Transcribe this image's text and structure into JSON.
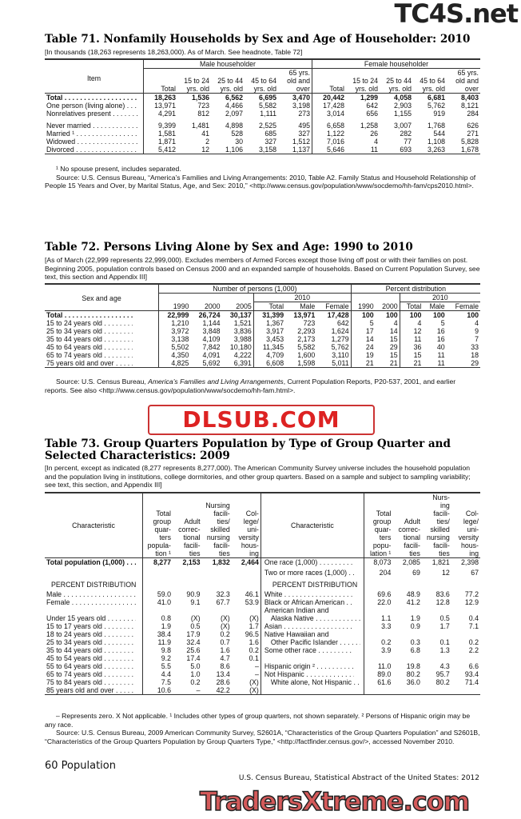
{
  "watermarks": {
    "top": "TC4S.net",
    "middle": "DLSUB.COM",
    "bottom": "TradersXtreme.com"
  },
  "t71": {
    "title": "Table 71. Nonfamily Households by Sex and Age of Householder: 2010",
    "headnote": "[In thousands (18,263 represents 18,263,000). As of March. See headnote, Table 72]",
    "item_header": "Item",
    "groups": [
      "Male householder",
      "Female householder"
    ],
    "cols": [
      "Total",
      "15 to 24 yrs. old",
      "25 to 44 yrs. old",
      "45 to 64 yrs. old",
      "65 yrs. old and over"
    ],
    "rows": [
      {
        "label": "Total",
        "bold": true,
        "values": [
          "18,263",
          "1,536",
          "6,562",
          "6,695",
          "3,470",
          "20,442",
          "1,299",
          "4,058",
          "6,681",
          "8,403"
        ]
      },
      {
        "label": "One person (living alone)",
        "values": [
          "13,971",
          "723",
          "4,466",
          "5,582",
          "3,198",
          "17,428",
          "642",
          "2,903",
          "5,762",
          "8,121"
        ]
      },
      {
        "label": "Nonrelatives present",
        "values": [
          "4,291",
          "812",
          "2,097",
          "1,111",
          "273",
          "3,014",
          "656",
          "1,155",
          "919",
          "284"
        ]
      },
      {
        "gap": true
      },
      {
        "label": "Never married",
        "values": [
          "9,399",
          "1,481",
          "4,898",
          "2,525",
          "495",
          "6,658",
          "1,258",
          "3,007",
          "1,768",
          "626"
        ]
      },
      {
        "label": "Married ¹",
        "values": [
          "1,581",
          "41",
          "528",
          "685",
          "327",
          "1,122",
          "26",
          "282",
          "544",
          "271"
        ]
      },
      {
        "label": "Widowed",
        "values": [
          "1,871",
          "2",
          "30",
          "327",
          "1,512",
          "7,016",
          "4",
          "77",
          "1,108",
          "5,828"
        ]
      },
      {
        "label": "Divorced",
        "values": [
          "5,412",
          "12",
          "1,106",
          "3,158",
          "1,137",
          "5,646",
          "11",
          "693",
          "3,263",
          "1,678"
        ]
      }
    ],
    "footnote": "¹ No spouse present, includes separated.",
    "source": "Source: U.S. Census Bureau, “America’s Families and Living Arrangements: 2010, Table A2. Family Status and Household Relationship of People 15 Years and Over, by Marital Status, Age, and Sex: 2010,” <http://www.census.gov/population/www/socdemo/hh-fam/cps2010.html>."
  },
  "t72": {
    "title": "Table 72. Persons Living Alone by Sex and Age: 1990 to 2010",
    "headnote": "[As of March (22,999 represents 22,999,000). Excludes members of Armed Forces except those living off post or with their families on post. Beginning 2005, population controls based on Census 2000 and an expanded sample of households. Based on Current Population Survey, see text, this section and Appendix III]",
    "stub_header": "Sex and age",
    "groups": [
      "Number of persons (1,000)",
      "Percent distribution"
    ],
    "sub_year": "2010",
    "years_num": [
      "1990",
      "2000",
      "2005"
    ],
    "years_pct": [
      "1990",
      "2000"
    ],
    "sub_cols": [
      "Total",
      "Male",
      "Female"
    ],
    "rows": [
      {
        "label": "Total",
        "bold": true,
        "values": [
          "22,999",
          "26,724",
          "30,137",
          "31,399",
          "13,971",
          "17,428",
          "100",
          "100",
          "100",
          "100",
          "100"
        ]
      },
      {
        "label": "15 to 24 years old",
        "values": [
          "1,210",
          "1,144",
          "1,521",
          "1,367",
          "723",
          "642",
          "5",
          "4",
          "4",
          "5",
          "4"
        ]
      },
      {
        "label": "25 to 34 years old",
        "values": [
          "3,972",
          "3,848",
          "3,836",
          "3,917",
          "2,293",
          "1,624",
          "17",
          "14",
          "12",
          "16",
          "9"
        ]
      },
      {
        "label": "35 to 44 years old",
        "values": [
          "3,138",
          "4,109",
          "3,988",
          "3,453",
          "2,173",
          "1,279",
          "14",
          "15",
          "11",
          "16",
          "7"
        ]
      },
      {
        "label": "45 to 64 years old",
        "values": [
          "5,502",
          "7,842",
          "10,180",
          "11,345",
          "5,582",
          "5,762",
          "24",
          "29",
          "36",
          "40",
          "33"
        ]
      },
      {
        "label": "65 to 74 years old",
        "values": [
          "4,350",
          "4,091",
          "4,222",
          "4,709",
          "1,600",
          "3,110",
          "19",
          "15",
          "15",
          "11",
          "18"
        ]
      },
      {
        "label": "75 years old and over",
        "values": [
          "4,825",
          "5,692",
          "6,391",
          "6,608",
          "1,598",
          "5,011",
          "21",
          "21",
          "21",
          "11",
          "29"
        ]
      }
    ],
    "source_a": "Source: U.S. Census Bureau, ",
    "source_i": "America’s Families and Living Arrangements",
    "source_b": ", Current Population Reports, P20-537, 2001, and earlier reports.  See also <http://www.census.gov/population/www/socdemo/hh-fam.html>."
  },
  "t73": {
    "title1": "Table 73. Group Quarters Population by Type of Group Quarter and",
    "title2": "Selected Characteristics: 2009",
    "headnote": "[In percent, except as indicated (8,277 represents 8,277,000). The American Community Survey universe includes the household population and the population living in institutions, college dormitories, and other group quarters. Based on a sample and subject to sampling variability; see text, this section, and Appendix III]",
    "stub_header": "Characteristic",
    "cols_left": [
      "Total group quar- ters popula- tion ¹",
      "Adult correc- tional facili- ties",
      "Nursing facili- ties/ skilled nursing facili- ties",
      "Col- lege/ uni- versity hous- ing"
    ],
    "cols_right": [
      "Total group quar- ters popu- lation ¹",
      "Adult correc- tional facili- ties",
      "Nurs- ing facili- ties/ skilled nursing facili- ties",
      "Col- lege/ uni- versity hous- ing"
    ],
    "rows": [
      {
        "l": "Total population (1,000)",
        "lb": true,
        "lv": [
          "8,277",
          "2,153",
          "1,832",
          "2,464"
        ],
        "r": "One race (1,000)",
        "rv": [
          "8,073",
          "2,085",
          "1,821",
          "2,398"
        ]
      },
      {
        "l": "",
        "lv": [],
        "r": "Two or more races (1,000)",
        "rv": [
          "204",
          "69",
          "12",
          "67"
        ]
      },
      {
        "l": "PERCENT DISTRIBUTION",
        "lh": true,
        "lv": [],
        "r": "PERCENT DISTRIBUTION",
        "rh": true,
        "rv": []
      },
      {
        "l": "Male",
        "lv": [
          "59.0",
          "90.9",
          "32.3",
          "46.1"
        ],
        "r": "White",
        "rv": [
          "69.6",
          "48.9",
          "83.6",
          "77.2"
        ]
      },
      {
        "l": "Female",
        "lv": [
          "41.0",
          "9.1",
          "67.7",
          "53.9"
        ],
        "r": "Black or African American",
        "rv": [
          "22.0",
          "41.2",
          "12.8",
          "12.9"
        ]
      },
      {
        "l": "",
        "lv": [],
        "r": "American Indian and",
        "rnod": true,
        "rv": []
      },
      {
        "l": "Under 15 years old",
        "lv": [
          "0.8",
          "(X)",
          "(X)",
          "(X)"
        ],
        "r": "Alaska Native",
        "rind": true,
        "rv": [
          "1.1",
          "1.9",
          "0.5",
          "0.4"
        ]
      },
      {
        "l": "15 to 17 years old",
        "lv": [
          "1.9",
          "0.5",
          "(X)",
          "1.7"
        ],
        "r": "Asian",
        "rv": [
          "3.3",
          "0.9",
          "1.7",
          "7.1"
        ]
      },
      {
        "l": "18 to 24 years old",
        "lv": [
          "38.4",
          "17.9",
          "0.2",
          "96.5"
        ],
        "r": "Native Hawaiian and",
        "rnod": true,
        "rv": []
      },
      {
        "l": "25 to 34 years old",
        "lv": [
          "11.9",
          "32.4",
          "0.7",
          "1.6"
        ],
        "r": "Other Pacific Islander",
        "rind": true,
        "rv": [
          "0.2",
          "0.3",
          "0.1",
          "0.2"
        ]
      },
      {
        "l": "35 to 44 years old",
        "lv": [
          "9.8",
          "25.6",
          "1.6",
          "0.2"
        ],
        "r": "Some other race",
        "rv": [
          "3.9",
          "6.8",
          "1.3",
          "2.2"
        ]
      },
      {
        "l": "45 to 54 years old",
        "lv": [
          "9.2",
          "17.4",
          "4.7",
          "0.1"
        ],
        "r": "",
        "rv": []
      },
      {
        "l": "55 to 64 years old",
        "lv": [
          "5.5",
          "5.0",
          "8.6",
          "–"
        ],
        "r": "Hispanic origin ²",
        "rv": [
          "11.0",
          "19.8",
          "4.3",
          "6.6"
        ]
      },
      {
        "l": "65 to 74 years old",
        "lv": [
          "4.4",
          "1.0",
          "13.4",
          "–"
        ],
        "r": "Not Hispanic",
        "rv": [
          "89.0",
          "80.2",
          "95.7",
          "93.4"
        ]
      },
      {
        "l": "75 to 84 years old",
        "lv": [
          "7.5",
          "0.2",
          "28.6",
          "(X)"
        ],
        "r": "White alone, Not Hispanic",
        "rind": true,
        "rv": [
          "61.6",
          "36.0",
          "80.2",
          "71.4"
        ]
      },
      {
        "l": "85 years old and over",
        "lv": [
          "10.6",
          "–",
          "42.2",
          "(X)"
        ],
        "r": "",
        "rv": []
      }
    ],
    "footnote": "– Represents zero. X Not applicable. ¹ Includes other types of group quarters, not shown separately. ² Persons of Hispanic origin may be any race.",
    "source": "Source: U.S. Census Bureau, 2009 American Community Survey, S2601A, “Characteristics of the Group Quarters Population” and S2601B, “Characteristics of the Group Quarters Population by Group Quarters Type,” <http://factfinder.census.gov/>, accessed November 2010."
  },
  "footer": {
    "page": "60  Population",
    "publication": "U.S. Census Bureau, Statistical Abstract of the United States: 2012"
  }
}
